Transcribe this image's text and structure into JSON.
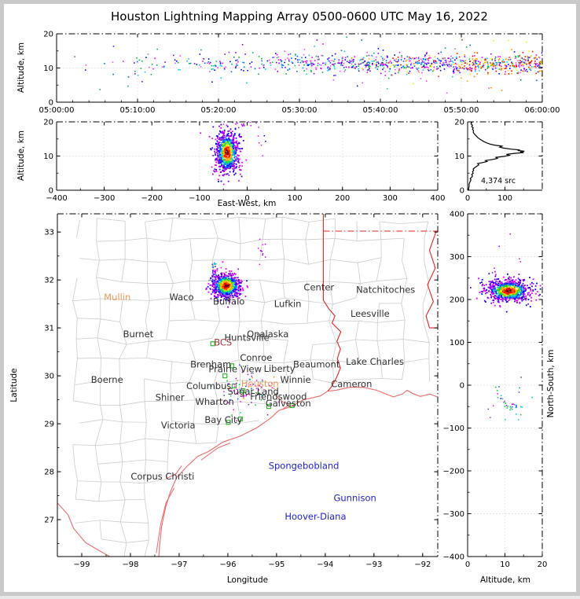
{
  "title": "Houston Lightning Mapping Array 0500-0600 UTC May 16, 2022",
  "colors": {
    "background": "#ffffff",
    "frame": "#c9c9c9",
    "axis": "#000000",
    "grid": "#e0e0e0",
    "county_line": "#cccccc",
    "state_line": "#ee2222",
    "coast_line": "#ee6b6b",
    "station_marker": "#33bb33",
    "hist_line": "#000000",
    "label_black": "#303030",
    "label_orange": "#f09a5a",
    "label_darkred": "#a83232",
    "label_blue": "#2323cc"
  },
  "panels": {
    "time": {
      "ylabel": "Altitude, km",
      "yticks": [
        0,
        10,
        20
      ],
      "xtick_values": [
        0,
        600,
        1200,
        1800,
        2400,
        3000,
        3600
      ],
      "xtick_labels": [
        "05:00:00",
        "05:10:00",
        "05:20:00",
        "05:30:00",
        "05:40:00",
        "05:50:00",
        "06:00:00"
      ]
    },
    "ew": {
      "ylabel": "Altitude, km",
      "xlabel": "East-West, km",
      "yticks": [
        0,
        10,
        20
      ],
      "xticks": [
        -400,
        -300,
        -200,
        -100,
        0,
        100,
        200,
        300,
        400
      ]
    },
    "hist": {
      "xticks": [
        0,
        100
      ],
      "yticks": [
        0,
        10,
        20
      ],
      "annotation": "4,374 src"
    },
    "map": {
      "xlabel": "Longitude",
      "ylabel": "Latitude",
      "xticks": [
        -99,
        -98,
        -97,
        -96,
        -95,
        -94,
        -93,
        -92
      ],
      "yticks": [
        27,
        28,
        29,
        30,
        31,
        32,
        33
      ],
      "cities": [
        {
          "name": "Mullin",
          "lon": -98.27,
          "lat": 31.64,
          "color": "orange"
        },
        {
          "name": "Waco",
          "lon": -96.95,
          "lat": 31.64,
          "color": "black"
        },
        {
          "name": "Buffalo",
          "lon": -95.98,
          "lat": 31.55,
          "color": "black"
        },
        {
          "name": "Center",
          "lon": -94.13,
          "lat": 31.85,
          "color": "black"
        },
        {
          "name": "Natchitoches",
          "lon": -92.76,
          "lat": 31.8,
          "color": "black"
        },
        {
          "name": "Lufkin",
          "lon": -94.77,
          "lat": 31.5,
          "color": "black"
        },
        {
          "name": "Leesville",
          "lon": -93.08,
          "lat": 31.3,
          "color": "black"
        },
        {
          "name": "Burnet",
          "lon": -97.84,
          "lat": 30.87,
          "color": "black"
        },
        {
          "name": "Huntsville",
          "lon": -95.61,
          "lat": 30.8,
          "color": "black"
        },
        {
          "name": "Onalaska",
          "lon": -95.18,
          "lat": 30.87,
          "color": "black"
        },
        {
          "name": "BCS",
          "lon": -96.1,
          "lat": 30.7,
          "color": "darkred"
        },
        {
          "name": "Conroe",
          "lon": -95.42,
          "lat": 30.38,
          "color": "black"
        },
        {
          "name": "Brenham",
          "lon": -96.35,
          "lat": 30.24,
          "color": "black"
        },
        {
          "name": "Prairie View",
          "lon": -95.85,
          "lat": 30.14,
          "color": "black"
        },
        {
          "name": "Liberty",
          "lon": -94.94,
          "lat": 30.15,
          "color": "black"
        },
        {
          "name": "Beaumont",
          "lon": -94.18,
          "lat": 30.24,
          "color": "black"
        },
        {
          "name": "Lake Charles",
          "lon": -92.98,
          "lat": 30.3,
          "color": "black"
        },
        {
          "name": "Winnie",
          "lon": -94.61,
          "lat": 29.92,
          "color": "black"
        },
        {
          "name": "Cameron",
          "lon": -93.46,
          "lat": 29.83,
          "color": "black"
        },
        {
          "name": "Boerne",
          "lon": -98.48,
          "lat": 29.92,
          "color": "black"
        },
        {
          "name": "Columbus",
          "lon": -96.39,
          "lat": 29.79,
          "color": "black"
        },
        {
          "name": "Houston",
          "lon": -95.34,
          "lat": 29.84,
          "color": "orange"
        },
        {
          "name": "Sugar Land",
          "lon": -95.48,
          "lat": 29.67,
          "color": "black"
        },
        {
          "name": "Friendswood",
          "lon": -94.96,
          "lat": 29.57,
          "color": "black"
        },
        {
          "name": "Shiner",
          "lon": -97.19,
          "lat": 29.55,
          "color": "black"
        },
        {
          "name": "Wharton",
          "lon": -96.27,
          "lat": 29.46,
          "color": "black"
        },
        {
          "name": "Galveston",
          "lon": -94.76,
          "lat": 29.43,
          "color": "black"
        },
        {
          "name": "Bay City",
          "lon": -96.09,
          "lat": 29.08,
          "color": "black"
        },
        {
          "name": "Victoria",
          "lon": -97.02,
          "lat": 28.97,
          "color": "black"
        },
        {
          "name": "Corpus Christi",
          "lon": -97.34,
          "lat": 27.9,
          "color": "black"
        },
        {
          "name": "Spongebobland",
          "lon": -94.44,
          "lat": 28.12,
          "color": "blue"
        },
        {
          "name": "Gunnison",
          "lon": -93.39,
          "lat": 27.45,
          "color": "blue"
        },
        {
          "name": "Hoover-Diana",
          "lon": -94.2,
          "lat": 27.07,
          "color": "blue"
        }
      ],
      "stations": [
        [
          -96.31,
          30.67
        ],
        [
          -95.92,
          30.21
        ],
        [
          -96.06,
          30.0
        ],
        [
          -95.87,
          29.79
        ],
        [
          -95.69,
          29.69
        ],
        [
          -95.16,
          29.36
        ],
        [
          -94.68,
          29.38
        ],
        [
          -95.99,
          29.03
        ],
        [
          -95.74,
          29.1
        ]
      ]
    },
    "ns": {
      "xlabel": "Altitude, km",
      "ylabel": "North-South, km",
      "xticks": [
        0,
        10,
        20
      ],
      "yticks": [
        -400,
        -300,
        -200,
        -100,
        0,
        100,
        200,
        300,
        400
      ]
    }
  },
  "map_geometry": {
    "coast": [
      [
        -91.7,
        29.56
      ],
      [
        -91.85,
        29.62
      ],
      [
        -92.05,
        29.57
      ],
      [
        -92.2,
        29.63
      ],
      [
        -92.32,
        29.7
      ],
      [
        -92.42,
        29.62
      ],
      [
        -92.6,
        29.56
      ],
      [
        -92.95,
        29.7
      ],
      [
        -93.22,
        29.76
      ],
      [
        -93.5,
        29.76
      ],
      [
        -93.78,
        29.7
      ],
      [
        -93.95,
        29.68
      ],
      [
        -94.1,
        29.58
      ],
      [
        -94.45,
        29.5
      ],
      [
        -94.72,
        29.35
      ],
      [
        -94.95,
        29.28
      ],
      [
        -95.12,
        29.12
      ],
      [
        -95.4,
        28.92
      ],
      [
        -95.75,
        28.74
      ],
      [
        -96.1,
        28.62
      ],
      [
        -96.4,
        28.42
      ],
      [
        -96.62,
        28.32
      ],
      [
        -96.85,
        28.1
      ],
      [
        -97.05,
        27.88
      ],
      [
        -97.18,
        27.58
      ],
      [
        -97.28,
        27.25
      ],
      [
        -97.36,
        26.85
      ],
      [
        -97.4,
        26.45
      ],
      [
        -97.42,
        26.2
      ]
    ],
    "bays": [
      [
        [
          -95.02,
          29.6
        ],
        [
          -94.88,
          29.46
        ],
        [
          -94.74,
          29.4
        ],
        [
          -94.88,
          29.3
        ]
      ],
      [
        [
          -97.47,
          26.3
        ],
        [
          -97.38,
          26.9
        ],
        [
          -97.27,
          27.35
        ],
        [
          -97.1,
          27.66
        ]
      ],
      [
        [
          -96.55,
          28.24
        ],
        [
          -96.2,
          28.5
        ],
        [
          -95.95,
          28.6
        ]
      ],
      [
        [
          -97.27,
          27.85
        ],
        [
          -97.06,
          27.96
        ],
        [
          -96.95,
          28.12
        ]
      ]
    ],
    "rio_grande": [
      [
        -99.5,
        27.35
      ],
      [
        -99.28,
        27.1
      ],
      [
        -99.17,
        26.82
      ],
      [
        -98.92,
        26.52
      ],
      [
        -98.55,
        26.3
      ],
      [
        -98.15,
        26.08
      ],
      [
        -97.72,
        25.93
      ]
    ],
    "tx_la_border": [
      [
        -94.04,
        33.38
      ],
      [
        -94.04,
        31.58
      ],
      [
        -93.93,
        31.4
      ],
      [
        -93.8,
        31.25
      ],
      [
        -93.86,
        31.1
      ],
      [
        -93.68,
        30.92
      ],
      [
        -93.76,
        30.72
      ],
      [
        -93.69,
        30.56
      ],
      [
        -93.75,
        30.36
      ],
      [
        -93.69,
        30.16
      ],
      [
        -93.77,
        29.96
      ],
      [
        -93.88,
        29.76
      ],
      [
        -93.95,
        29.68
      ]
    ],
    "north_border": [
      [
        -94.04,
        33.02
      ],
      [
        -91.69,
        33.02
      ]
    ],
    "mississippi": [
      [
        -91.72,
        33.02
      ],
      [
        -91.86,
        32.62
      ],
      [
        -91.74,
        32.25
      ],
      [
        -91.9,
        31.9
      ],
      [
        -91.78,
        31.55
      ],
      [
        -91.93,
        31.25
      ],
      [
        -91.86,
        31.0
      ],
      [
        -91.69,
        31.0
      ]
    ]
  },
  "chart_data": {
    "type": "scatter",
    "figure": "XLMA-style multi-panel VHF lightning source plot",
    "seed": 20220516,
    "total_sources_label": "4,374 src",
    "total_sources": 4374,
    "time_extent_utc": [
      "05:00:00",
      "06:00:00"
    ],
    "altitude_range_km": [
      0,
      20
    ],
    "ew_range_km": [
      -400,
      400
    ],
    "ns_range_km": [
      -400,
      400
    ],
    "lon_range": [
      -99.5,
      -91.69
    ],
    "lat_range": [
      26.23,
      33.38
    ],
    "altitude_profile": [
      [
        0,
        2
      ],
      [
        0.6,
        3
      ],
      [
        1.2,
        4
      ],
      [
        1.8,
        4
      ],
      [
        2.4,
        6
      ],
      [
        3,
        9
      ],
      [
        3.4,
        7
      ],
      [
        3.8,
        11
      ],
      [
        4.2,
        13
      ],
      [
        4.6,
        11
      ],
      [
        5,
        15
      ],
      [
        5.4,
        13
      ],
      [
        5.8,
        16
      ],
      [
        6.2,
        15
      ],
      [
        6.6,
        19
      ],
      [
        7,
        24
      ],
      [
        7.4,
        30
      ],
      [
        7.8,
        27
      ],
      [
        8.1,
        40
      ],
      [
        8.4,
        52
      ],
      [
        8.7,
        48
      ],
      [
        9,
        68
      ],
      [
        9.3,
        80
      ],
      [
        9.6,
        76
      ],
      [
        9.9,
        98
      ],
      [
        10.2,
        112
      ],
      [
        10.5,
        104
      ],
      [
        10.8,
        128
      ],
      [
        11,
        150
      ],
      [
        11.2,
        141
      ],
      [
        11.4,
        152
      ],
      [
        11.6,
        134
      ],
      [
        11.8,
        140
      ],
      [
        12,
        118
      ],
      [
        12.3,
        98
      ],
      [
        12.6,
        86
      ],
      [
        12.9,
        92
      ],
      [
        13.2,
        72
      ],
      [
        13.5,
        60
      ],
      [
        13.8,
        52
      ],
      [
        14.2,
        44
      ],
      [
        14.6,
        38
      ],
      [
        15,
        32
      ],
      [
        15.4,
        27
      ],
      [
        15.8,
        24
      ],
      [
        16.2,
        20
      ],
      [
        16.6,
        17
      ],
      [
        17,
        15
      ],
      [
        17.4,
        16
      ],
      [
        17.8,
        13
      ],
      [
        18.2,
        15
      ],
      [
        18.6,
        11
      ],
      [
        19,
        13
      ],
      [
        19.4,
        9
      ],
      [
        19.8,
        11
      ],
      [
        20,
        8
      ]
    ],
    "clusters": [
      {
        "panel": "time",
        "type": "time_ramp",
        "n": 1000,
        "alt": [
          11.2,
          1.5
        ],
        "out_frac": 0.08,
        "size": 1.6
      },
      {
        "panel": "ew",
        "type": "radial",
        "center": [
          -42,
          11
        ],
        "sigma": [
          13,
          3.1
        ],
        "csigma": [
          9.5,
          2.3
        ],
        "n": 750,
        "size": 1.8
      },
      {
        "panel": "ew",
        "type": "palette",
        "palette": [
          "#ff00ff",
          "#cc00ff",
          "#8800ff"
        ],
        "center": [
          -12,
          19.1
        ],
        "sigma": [
          14,
          0.6
        ],
        "n": 14,
        "size": 1.5
      },
      {
        "panel": "ew",
        "type": "palette",
        "palette": [
          "#8800ff",
          "#0000ff",
          "#ff00ff"
        ],
        "center": [
          30,
          13
        ],
        "sigma": [
          6,
          2
        ],
        "n": 6,
        "size": 1.5
      },
      {
        "panel": "map",
        "type": "radial",
        "center": [
          -96.03,
          31.88
        ],
        "sigma": [
          0.135,
          0.12
        ],
        "csigma": [
          0.115,
          0.1
        ],
        "n": 800,
        "size": 1.8
      },
      {
        "panel": "map",
        "type": "palette",
        "palette": [
          "#ff00ff",
          "#8800ff",
          "#0033ff",
          "#00bbbb"
        ],
        "center": [
          -96.28,
          32.17
        ],
        "sigma": [
          0.05,
          0.1
        ],
        "n": 45,
        "size": 1.5
      },
      {
        "panel": "map",
        "type": "palette",
        "palette": [
          "#ff00ff",
          "#aa00ff"
        ],
        "center": [
          -95.28,
          32.6
        ],
        "sigma": [
          0.06,
          0.13
        ],
        "n": 11,
        "size": 1.5
      },
      {
        "panel": "map",
        "type": "palette",
        "palette": [
          "#9900ff",
          "#ff00ff",
          "#2244ff",
          "#00bb44",
          "#ff8800",
          "#00cccc",
          "#ff00ff"
        ],
        "center": [
          -95.62,
          29.72
        ],
        "sigma": [
          0.3,
          0.24
        ],
        "n": 85,
        "size": 1.5
      },
      {
        "panel": "ns",
        "type": "radial",
        "center": [
          11,
          220
        ],
        "sigma": [
          3.1,
          13
        ],
        "csigma": [
          2.3,
          9.5
        ],
        "n": 750,
        "size": 1.8
      },
      {
        "panel": "ns",
        "type": "palette",
        "palette": [
          "#9900ff",
          "#ff00ff",
          "#2244ff",
          "#00cccc",
          "#00bb44"
        ],
        "center": [
          10.5,
          -42
        ],
        "sigma": [
          2.8,
          22
        ],
        "n": 42,
        "size": 1.5
      },
      {
        "panel": "ns",
        "type": "palette",
        "palette": [
          "#8800ff",
          "#cc00ff"
        ],
        "center": [
          9,
          300
        ],
        "sigma": [
          3,
          35
        ],
        "n": 6,
        "size": 1.5
      }
    ]
  }
}
